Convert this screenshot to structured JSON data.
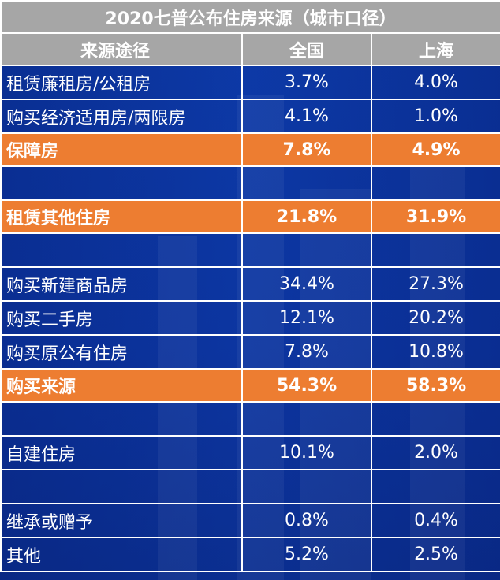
{
  "title": "2020七普公布住房来源（城市口径）",
  "headers": {
    "source": "来源途径",
    "national": "全国",
    "shanghai": "上海"
  },
  "rows": [
    {
      "label": "租赁廉租房/公租房",
      "national": "3.7%",
      "shanghai": "4.0%"
    },
    {
      "label": "购买经济适用房/两限房",
      "national": "4.1%",
      "shanghai": "1.0%"
    },
    {
      "label": "保障房",
      "national": "7.8%",
      "shanghai": "4.9%"
    },
    {
      "label": "",
      "national": "",
      "shanghai": ""
    },
    {
      "label": "租赁其他住房",
      "national": "21.8%",
      "shanghai": "31.9%"
    },
    {
      "label": "",
      "national": "",
      "shanghai": ""
    },
    {
      "label": "购买新建商品房",
      "national": "34.4%",
      "shanghai": "27.3%"
    },
    {
      "label": "购买二手房",
      "national": "12.1%",
      "shanghai": "20.2%"
    },
    {
      "label": "购买原公有住房",
      "national": "7.8%",
      "shanghai": "10.8%"
    },
    {
      "label": "购买来源",
      "national": "54.3%",
      "shanghai": "58.3%"
    },
    {
      "label": "",
      "national": "",
      "shanghai": ""
    },
    {
      "label": "自建住房",
      "national": "10.1%",
      "shanghai": "2.0%"
    },
    {
      "label": "",
      "national": "",
      "shanghai": ""
    },
    {
      "label": "继承或赠予",
      "national": "0.8%",
      "shanghai": "0.4%"
    },
    {
      "label": "其他",
      "national": "5.2%",
      "shanghai": "2.5%"
    }
  ],
  "colors": {
    "header_bg": "#a6a6a6",
    "highlight_bg": "#ed7d31",
    "table_bg": "#0b2f8e",
    "border": "#ffffff"
  }
}
